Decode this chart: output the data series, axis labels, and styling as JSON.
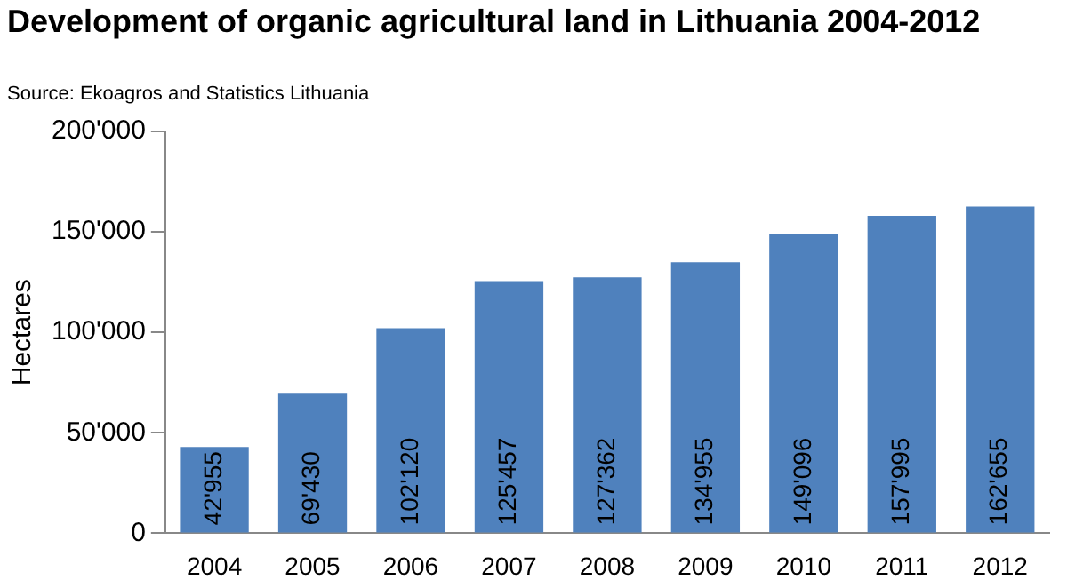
{
  "chart_data": {
    "type": "bar",
    "title": "Development of organic agricultural land in Lithuania 2004-2012",
    "annotations": [
      "Source: Ekoagros and Statistics Lithuania"
    ],
    "ylabel": "Hectares",
    "categories": [
      "2004",
      "2005",
      "2006",
      "2007",
      "2008",
      "2009",
      "2010",
      "2011",
      "2012"
    ],
    "values": [
      42955,
      69430,
      102120,
      125457,
      127362,
      134955,
      149096,
      157995,
      162655
    ],
    "value_labels": [
      "42'955",
      "69'430",
      "102'120",
      "125'457",
      "127'362",
      "134'955",
      "149'096",
      "157'995",
      "162'655"
    ],
    "color": "#4f81bd",
    "ylim": [
      0,
      200000
    ],
    "yticks": [
      0,
      {
        "value": 50000,
        "label": "50'000"
      },
      {
        "value": 100000,
        "label": "100'000"
      },
      {
        "value": 150000,
        "label": "150'000"
      },
      {
        "value": 200000,
        "label": "200'000"
      }
    ],
    "grid": false,
    "legend": false
  }
}
